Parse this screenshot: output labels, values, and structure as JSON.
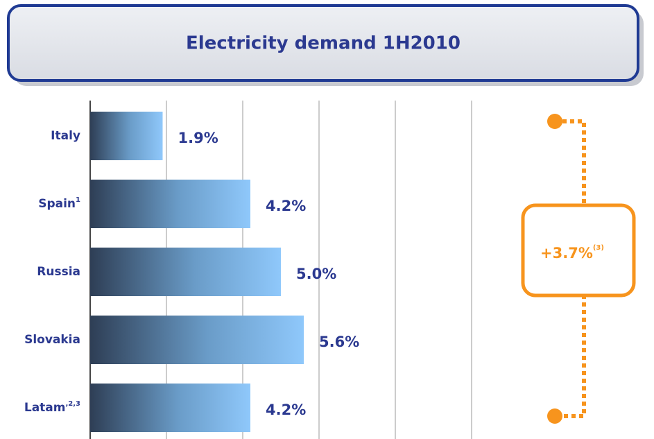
{
  "chart_data": {
    "type": "bar",
    "orientation": "horizontal",
    "title": "Electricity demand 1H2010",
    "categories": [
      "Italy",
      "Spain",
      "Russia",
      "Slovakia",
      "Latam"
    ],
    "category_notes": [
      null,
      "1",
      null,
      null,
      ",2,3"
    ],
    "values": [
      1.9,
      4.2,
      5.0,
      5.6,
      4.2
    ],
    "value_labels": [
      "1.9%",
      "4.2%",
      "5.0%",
      "5.6%",
      "4.2%"
    ],
    "xlim": [
      0,
      10
    ],
    "xticks": [
      0,
      2,
      4,
      6,
      8,
      10
    ],
    "grid": true,
    "annotation": {
      "text": "+3.7%",
      "note": "(3)",
      "color": "#f7941d"
    }
  }
}
